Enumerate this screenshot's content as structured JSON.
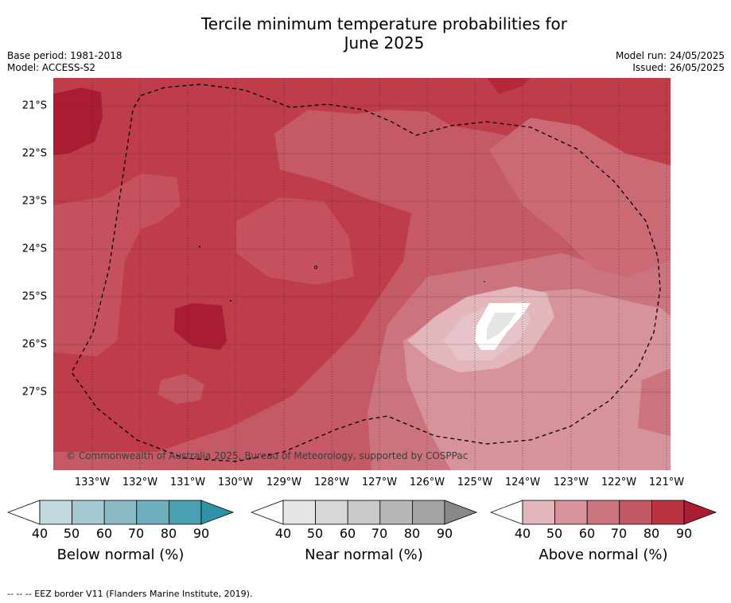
{
  "title_line1": "Tercile minimum temperature probabilities for",
  "title_line2": "June 2025",
  "base_period": "Base period: 1981-2018",
  "model": "Model: ACCESS-S2",
  "model_run": "Model run: 24/05/2025",
  "issued": "Issued: 26/05/2025",
  "latitudes": [
    "21°S",
    "22°S",
    "23°S",
    "24°S",
    "25°S",
    "26°S",
    "27°S"
  ],
  "longitudes": [
    "133°W",
    "132°W",
    "131°W",
    "130°W",
    "129°W",
    "128°W",
    "127°W",
    "126°W",
    "125°W",
    "124°W",
    "123°W",
    "122°W",
    "121°W"
  ],
  "copyright": "© Commonwealth of Australia 2025, Bureau of Meteorology, supported by COSPPac",
  "colorbars": [
    {
      "label": "Below normal (%)",
      "colors": [
        "#c0d8de",
        "#a6c9d1",
        "#8bbac5",
        "#6eaebd",
        "#4aa0b2",
        "#2f93a7"
      ]
    },
    {
      "label": "Near normal (%)",
      "colors": [
        "#e5e5e5",
        "#d7d7d7",
        "#c9c9c9",
        "#b7b7b7",
        "#a3a3a3",
        "#888888"
      ]
    },
    {
      "label": "Above normal (%)",
      "colors": [
        "#e3b6bc",
        "#d7939b",
        "#cb747d",
        "#c35763",
        "#b8323f",
        "#a91c34"
      ]
    }
  ],
  "colorbar_ticks": [
    "40",
    "50",
    "60",
    "70",
    "80",
    "90"
  ],
  "footnote": "--  --  -- EEZ border V11 (Flanders Marine Institute, 2019)."
}
